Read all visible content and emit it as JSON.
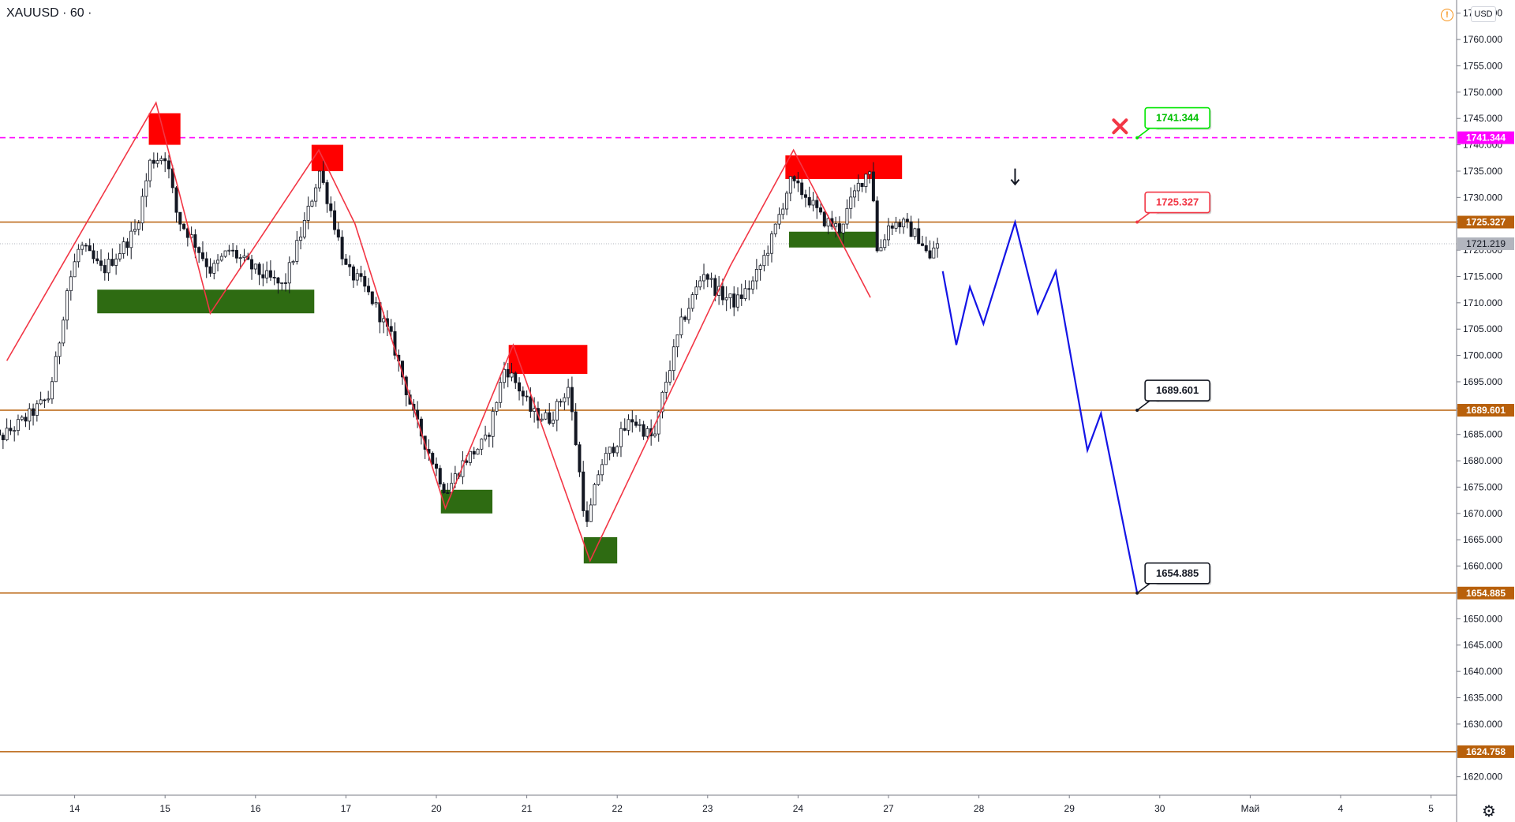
{
  "header": {
    "symbol": "XAUUSD · 60 ·",
    "currency": "USD",
    "warning_icon": "warning-icon",
    "settings_icon": "gear-icon"
  },
  "colors": {
    "level": "#b8600b",
    "pink": "#ff00ff",
    "blue": "#1414e6",
    "zigzag": "#f23645",
    "red_zone": "#ff0000",
    "green_zone": "#2e6b12",
    "candle": "#131722"
  },
  "chart_data": {
    "type": "candlestick",
    "symbol": "XAUUSD",
    "timeframe": "60",
    "ylim": [
      1616.5,
      1767.5
    ],
    "y_ticks": [
      1620,
      1625,
      1630,
      1635,
      1640,
      1645,
      1650,
      1655,
      1660,
      1665,
      1670,
      1675,
      1680,
      1685,
      1690,
      1695,
      1700,
      1705,
      1710,
      1715,
      1720,
      1725,
      1730,
      1735,
      1740,
      1745,
      1750,
      1755,
      1760,
      1765
    ],
    "x_labels": [
      "14",
      "15",
      "16",
      "17",
      "20",
      "21",
      "22",
      "23",
      "24",
      "27",
      "28",
      "29",
      "30",
      "Май",
      "4",
      "5"
    ],
    "x_label_pos": [
      1.0,
      2.0,
      3.0,
      4.0,
      5.0,
      6.0,
      7.0,
      8.0,
      9.0,
      10.0,
      11.0,
      12.0,
      13.0,
      14.0,
      15.0,
      16.0
    ],
    "current_price": "1721.219",
    "current_price_value": 1721.219,
    "levels": [
      {
        "name": "1741.344",
        "value": 1741.344,
        "style": "dashed",
        "color": "#ff00ff",
        "label": "1741.344"
      },
      {
        "name": "1725.327",
        "value": 1725.327,
        "style": "solid",
        "color": "#b8600b",
        "label": "1725.327"
      },
      {
        "name": "1689.601",
        "value": 1689.601,
        "style": "solid",
        "color": "#b8600b",
        "label": "1689.601"
      },
      {
        "name": "1654.885",
        "value": 1654.885,
        "style": "solid",
        "color": "#b8600b",
        "label": "1654.885"
      },
      {
        "name": "1624.758",
        "value": 1624.758,
        "style": "solid",
        "color": "#b8600b",
        "label": "1624.758"
      }
    ],
    "callouts": [
      {
        "text": "1741.344",
        "t": 12.75,
        "price": 1741.344,
        "border": "#00e600",
        "color": "#00c000"
      },
      {
        "text": "1725.327",
        "t": 12.75,
        "price": 1725.327,
        "border": "#f23645",
        "color": "#f23645"
      },
      {
        "text": "1689.601",
        "t": 12.75,
        "price": 1689.601,
        "border": "#131722",
        "color": "#131722"
      },
      {
        "text": "1654.885",
        "t": 12.75,
        "price": 1654.885,
        "border": "#131722",
        "color": "#131722"
      }
    ],
    "zigzag": [
      [
        0.25,
        1699
      ],
      [
        1.9,
        1748
      ],
      [
        2.5,
        1708
      ],
      [
        3.7,
        1739
      ],
      [
        4.1,
        1725
      ],
      [
        5.1,
        1671
      ],
      [
        5.85,
        1702
      ],
      [
        6.7,
        1661
      ],
      [
        8.25,
        1717
      ],
      [
        8.95,
        1739
      ],
      [
        9.8,
        1711
      ]
    ],
    "forecast": [
      [
        10.6,
        1716
      ],
      [
        10.75,
        1702
      ],
      [
        10.9,
        1713
      ],
      [
        11.05,
        1706
      ],
      [
        11.4,
        1725.3
      ],
      [
        11.65,
        1708
      ],
      [
        11.85,
        1716
      ],
      [
        12.2,
        1682
      ],
      [
        12.35,
        1689
      ],
      [
        12.75,
        1654.9
      ]
    ],
    "zones": [
      {
        "kind": "resistance",
        "t0": 1.82,
        "t1": 2.17,
        "lo": 1740,
        "hi": 1746,
        "color": "#ff0000"
      },
      {
        "kind": "resistance",
        "t0": 3.62,
        "t1": 3.97,
        "lo": 1735,
        "hi": 1740,
        "color": "#ff0000"
      },
      {
        "kind": "resistance",
        "t0": 5.8,
        "t1": 6.67,
        "lo": 1696.5,
        "hi": 1702,
        "color": "#ff0000"
      },
      {
        "kind": "resistance",
        "t0": 8.86,
        "t1": 10.15,
        "lo": 1733.5,
        "hi": 1738,
        "color": "#ff0000"
      },
      {
        "kind": "support",
        "t0": 1.25,
        "t1": 3.65,
        "lo": 1708,
        "hi": 1712.5,
        "color": "#2e6b12"
      },
      {
        "kind": "support",
        "t0": 5.05,
        "t1": 5.62,
        "lo": 1670,
        "hi": 1674.5,
        "color": "#2e6b12"
      },
      {
        "kind": "support",
        "t0": 6.63,
        "t1": 7.0,
        "lo": 1660.5,
        "hi": 1665.5,
        "color": "#2e6b12"
      },
      {
        "kind": "support",
        "t0": 8.9,
        "t1": 9.86,
        "lo": 1720.5,
        "hi": 1723.5,
        "color": "#2e6b12"
      }
    ],
    "markers": [
      {
        "kind": "cross",
        "t": 12.56,
        "price": 1743.5,
        "color": "#f23645"
      },
      {
        "kind": "arrow-down",
        "t": 11.4,
        "price": 1734,
        "color": "#131722"
      }
    ],
    "price_anchors": [
      [
        0.0,
        1690
      ],
      [
        0.2,
        1684
      ],
      [
        0.5,
        1688
      ],
      [
        0.75,
        1692
      ],
      [
        0.85,
        1700
      ],
      [
        0.95,
        1712
      ],
      [
        1.1,
        1721
      ],
      [
        1.35,
        1716
      ],
      [
        1.55,
        1720
      ],
      [
        1.72,
        1724
      ],
      [
        1.88,
        1737
      ],
      [
        2.05,
        1738
      ],
      [
        2.18,
        1726
      ],
      [
        2.35,
        1722
      ],
      [
        2.55,
        1716
      ],
      [
        2.75,
        1720
      ],
      [
        3.05,
        1716
      ],
      [
        3.35,
        1713
      ],
      [
        3.6,
        1726
      ],
      [
        3.75,
        1735
      ],
      [
        3.9,
        1726
      ],
      [
        4.05,
        1716
      ],
      [
        4.2,
        1714
      ],
      [
        4.35,
        1710
      ],
      [
        4.55,
        1703
      ],
      [
        4.8,
        1688
      ],
      [
        5.0,
        1680
      ],
      [
        5.15,
        1674
      ],
      [
        5.35,
        1680
      ],
      [
        5.6,
        1684
      ],
      [
        5.8,
        1698
      ],
      [
        5.95,
        1694
      ],
      [
        6.1,
        1689
      ],
      [
        6.3,
        1688
      ],
      [
        6.5,
        1694
      ],
      [
        6.58,
        1684
      ],
      [
        6.7,
        1667
      ],
      [
        6.85,
        1679
      ],
      [
        7.05,
        1684
      ],
      [
        7.2,
        1688
      ],
      [
        7.45,
        1684
      ],
      [
        7.55,
        1693
      ],
      [
        7.75,
        1706
      ],
      [
        8.0,
        1716
      ],
      [
        8.15,
        1712
      ],
      [
        8.35,
        1710
      ],
      [
        8.55,
        1714
      ],
      [
        8.75,
        1722
      ],
      [
        8.95,
        1733
      ],
      [
        9.15,
        1730
      ],
      [
        9.3,
        1726
      ],
      [
        9.5,
        1724
      ],
      [
        9.7,
        1732
      ],
      [
        9.85,
        1736
      ],
      [
        9.92,
        1719
      ],
      [
        10.05,
        1725
      ],
      [
        10.2,
        1725
      ],
      [
        10.4,
        1722
      ],
      [
        10.5,
        1718
      ],
      [
        10.55,
        1721
      ]
    ]
  }
}
